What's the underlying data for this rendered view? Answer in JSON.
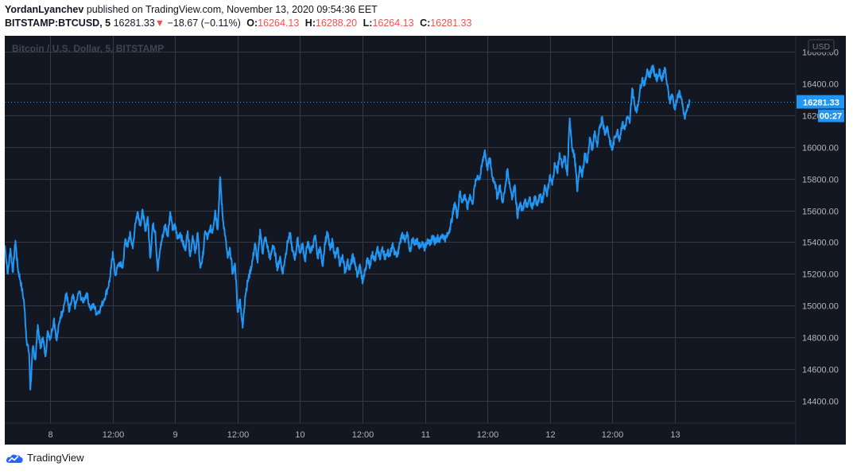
{
  "header": {
    "author": "YordanLyanchev",
    "published_text": " published on TradingView.com, November 13, 2020 09:54:36 EET",
    "symbol": "BITSTAMP:BTCUSD, 5",
    "last": "16281.33",
    "change": "−18.67 (−0.11%)",
    "o_label": "O:",
    "o_value": "16264.13",
    "h_label": "H:",
    "h_value": "16288.20",
    "l_label": "L:",
    "l_value": "16264.13",
    "c_label": "C:",
    "c_value": "16281.33",
    "down_arrow": "▼"
  },
  "footer": {
    "brand": "TradingView",
    "logo_icon": "tradingview-cloud-icon"
  },
  "colors": {
    "background": "#131722",
    "grid": "#363a45",
    "line": "#2196f3",
    "axis_text": "#b2b5be",
    "down": "#ef5350"
  },
  "chart_data": {
    "type": "line",
    "title": "Bitcoin / U.S. Dollar, 5, BITSTAMP",
    "currency": "USD",
    "x_ticks": [
      "8",
      "12:00",
      "9",
      "12:00",
      "10",
      "12:00",
      "11",
      "12:00",
      "12",
      "12:00",
      "13"
    ],
    "y_ticks": [
      14400,
      14600,
      14800,
      15000,
      15200,
      15400,
      15600,
      15800,
      16000,
      16200,
      16400,
      16600
    ],
    "y_tick_labels": [
      "14400.00",
      "14600.00",
      "14800.00",
      "15000.00",
      "15200.00",
      "15400.00",
      "15600.00",
      "15800.00",
      "16000.00",
      "16200.00",
      "16400.00",
      "16600.00"
    ],
    "ylim": [
      14260,
      16700
    ],
    "x_unit": "days since Nov 7 2020 00:00 (EET)",
    "xlim": [
      0.635,
      6.97
    ],
    "last_price": 16281.33,
    "last_price_label": "16281.33",
    "countdown": "00:27",
    "series": [
      {
        "name": "BTCUSD",
        "points": [
          [
            0.635,
            15380
          ],
          [
            0.66,
            15200
          ],
          [
            0.68,
            15360
          ],
          [
            0.7,
            15210
          ],
          [
            0.72,
            15410
          ],
          [
            0.74,
            15230
          ],
          [
            0.76,
            15160
          ],
          [
            0.79,
            15020
          ],
          [
            0.81,
            14780
          ],
          [
            0.83,
            14700
          ],
          [
            0.84,
            14470
          ],
          [
            0.86,
            14740
          ],
          [
            0.88,
            14660
          ],
          [
            0.9,
            14880
          ],
          [
            0.92,
            14730
          ],
          [
            0.94,
            14800
          ],
          [
            0.96,
            14680
          ],
          [
            0.98,
            14840
          ],
          [
            1.0,
            14790
          ],
          [
            1.03,
            14920
          ],
          [
            1.05,
            14780
          ],
          [
            1.08,
            14930
          ],
          [
            1.1,
            14970
          ],
          [
            1.13,
            15080
          ],
          [
            1.15,
            14960
          ],
          [
            1.18,
            15060
          ],
          [
            1.2,
            14990
          ],
          [
            1.23,
            15090
          ],
          [
            1.26,
            15020
          ],
          [
            1.29,
            15080
          ],
          [
            1.32,
            14980
          ],
          [
            1.35,
            15000
          ],
          [
            1.37,
            14950
          ],
          [
            1.4,
            14980
          ],
          [
            1.43,
            15040
          ],
          [
            1.46,
            15110
          ],
          [
            1.48,
            15180
          ],
          [
            1.5,
            15340
          ],
          [
            1.52,
            15190
          ],
          [
            1.55,
            15270
          ],
          [
            1.58,
            15240
          ],
          [
            1.6,
            15420
          ],
          [
            1.62,
            15370
          ],
          [
            1.64,
            15460
          ],
          [
            1.66,
            15360
          ],
          [
            1.68,
            15520
          ],
          [
            1.7,
            15590
          ],
          [
            1.72,
            15510
          ],
          [
            1.74,
            15600
          ],
          [
            1.76,
            15470
          ],
          [
            1.78,
            15560
          ],
          [
            1.8,
            15300
          ],
          [
            1.82,
            15510
          ],
          [
            1.84,
            15470
          ],
          [
            1.86,
            15220
          ],
          [
            1.88,
            15360
          ],
          [
            1.9,
            15440
          ],
          [
            1.92,
            15510
          ],
          [
            1.94,
            15440
          ],
          [
            1.96,
            15590
          ],
          [
            1.98,
            15480
          ],
          [
            2.0,
            15500
          ],
          [
            2.02,
            15420
          ],
          [
            2.04,
            15460
          ],
          [
            2.06,
            15400
          ],
          [
            2.08,
            15350
          ],
          [
            2.1,
            15470
          ],
          [
            2.12,
            15310
          ],
          [
            2.14,
            15440
          ],
          [
            2.16,
            15330
          ],
          [
            2.18,
            15460
          ],
          [
            2.2,
            15240
          ],
          [
            2.22,
            15300
          ],
          [
            2.24,
            15470
          ],
          [
            2.26,
            15420
          ],
          [
            2.28,
            15490
          ],
          [
            2.3,
            15470
          ],
          [
            2.32,
            15600
          ],
          [
            2.34,
            15480
          ],
          [
            2.36,
            15810
          ],
          [
            2.38,
            15560
          ],
          [
            2.4,
            15440
          ],
          [
            2.42,
            15300
          ],
          [
            2.44,
            15350
          ],
          [
            2.46,
            15200
          ],
          [
            2.48,
            15260
          ],
          [
            2.5,
            14960
          ],
          [
            2.52,
            15040
          ],
          [
            2.54,
            14860
          ],
          [
            2.56,
            15060
          ],
          [
            2.58,
            15150
          ],
          [
            2.6,
            15210
          ],
          [
            2.62,
            15290
          ],
          [
            2.64,
            15390
          ],
          [
            2.66,
            15270
          ],
          [
            2.68,
            15480
          ],
          [
            2.7,
            15330
          ],
          [
            2.72,
            15430
          ],
          [
            2.74,
            15370
          ],
          [
            2.76,
            15290
          ],
          [
            2.78,
            15380
          ],
          [
            2.8,
            15330
          ],
          [
            2.82,
            15230
          ],
          [
            2.84,
            15310
          ],
          [
            2.86,
            15200
          ],
          [
            2.88,
            15300
          ],
          [
            2.9,
            15400
          ],
          [
            2.92,
            15450
          ],
          [
            2.94,
            15340
          ],
          [
            2.96,
            15300
          ],
          [
            2.98,
            15420
          ],
          [
            3.0,
            15330
          ],
          [
            3.02,
            15390
          ],
          [
            3.04,
            15280
          ],
          [
            3.06,
            15400
          ],
          [
            3.08,
            15340
          ],
          [
            3.1,
            15370
          ],
          [
            3.12,
            15440
          ],
          [
            3.14,
            15300
          ],
          [
            3.16,
            15370
          ],
          [
            3.18,
            15250
          ],
          [
            3.2,
            15400
          ],
          [
            3.22,
            15460
          ],
          [
            3.24,
            15350
          ],
          [
            3.26,
            15410
          ],
          [
            3.28,
            15300
          ],
          [
            3.3,
            15360
          ],
          [
            3.32,
            15250
          ],
          [
            3.34,
            15320
          ],
          [
            3.36,
            15210
          ],
          [
            3.38,
            15280
          ],
          [
            3.4,
            15230
          ],
          [
            3.42,
            15310
          ],
          [
            3.44,
            15270
          ],
          [
            3.46,
            15180
          ],
          [
            3.48,
            15260
          ],
          [
            3.5,
            15140
          ],
          [
            3.52,
            15220
          ],
          [
            3.54,
            15300
          ],
          [
            3.56,
            15250
          ],
          [
            3.58,
            15340
          ],
          [
            3.6,
            15280
          ],
          [
            3.62,
            15360
          ],
          [
            3.64,
            15290
          ],
          [
            3.66,
            15370
          ],
          [
            3.68,
            15300
          ],
          [
            3.7,
            15340
          ],
          [
            3.72,
            15320
          ],
          [
            3.74,
            15380
          ],
          [
            3.76,
            15330
          ],
          [
            3.78,
            15310
          ],
          [
            3.8,
            15400
          ],
          [
            3.82,
            15460
          ],
          [
            3.84,
            15400
          ],
          [
            3.86,
            15450
          ],
          [
            3.88,
            15340
          ],
          [
            3.9,
            15420
          ],
          [
            3.92,
            15390
          ],
          [
            3.94,
            15410
          ],
          [
            3.96,
            15370
          ],
          [
            3.98,
            15400
          ],
          [
            4.0,
            15360
          ],
          [
            4.02,
            15420
          ],
          [
            4.04,
            15380
          ],
          [
            4.06,
            15440
          ],
          [
            4.08,
            15400
          ],
          [
            4.1,
            15430
          ],
          [
            4.12,
            15410
          ],
          [
            4.14,
            15450
          ],
          [
            4.16,
            15420
          ],
          [
            4.18,
            15440
          ],
          [
            4.2,
            15490
          ],
          [
            4.22,
            15560
          ],
          [
            4.24,
            15650
          ],
          [
            4.26,
            15560
          ],
          [
            4.28,
            15720
          ],
          [
            4.3,
            15650
          ],
          [
            4.32,
            15700
          ],
          [
            4.34,
            15610
          ],
          [
            4.36,
            15700
          ],
          [
            4.38,
            15640
          ],
          [
            4.4,
            15760
          ],
          [
            4.42,
            15820
          ],
          [
            4.44,
            15800
          ],
          [
            4.46,
            15900
          ],
          [
            4.48,
            15980
          ],
          [
            4.5,
            15860
          ],
          [
            4.52,
            15930
          ],
          [
            4.54,
            15810
          ],
          [
            4.56,
            15780
          ],
          [
            4.58,
            15680
          ],
          [
            4.6,
            15760
          ],
          [
            4.62,
            15650
          ],
          [
            4.64,
            15720
          ],
          [
            4.66,
            15860
          ],
          [
            4.68,
            15760
          ],
          [
            4.7,
            15680
          ],
          [
            4.72,
            15760
          ],
          [
            4.74,
            15560
          ],
          [
            4.76,
            15640
          ],
          [
            4.78,
            15600
          ],
          [
            4.8,
            15660
          ],
          [
            4.82,
            15620
          ],
          [
            4.84,
            15680
          ],
          [
            4.86,
            15610
          ],
          [
            4.88,
            15690
          ],
          [
            4.9,
            15630
          ],
          [
            4.92,
            15700
          ],
          [
            4.94,
            15650
          ],
          [
            4.96,
            15760
          ],
          [
            4.98,
            15700
          ],
          [
            5.0,
            15820
          ],
          [
            5.02,
            15760
          ],
          [
            5.04,
            15900
          ],
          [
            5.06,
            15840
          ],
          [
            5.08,
            15960
          ],
          [
            5.1,
            15870
          ],
          [
            5.12,
            15940
          ],
          [
            5.14,
            15820
          ],
          [
            5.16,
            16180
          ],
          [
            5.18,
            15990
          ],
          [
            5.2,
            15930
          ],
          [
            5.22,
            15720
          ],
          [
            5.24,
            15880
          ],
          [
            5.26,
            15810
          ],
          [
            5.28,
            15960
          ],
          [
            5.3,
            15900
          ],
          [
            5.32,
            16060
          ],
          [
            5.34,
            15980
          ],
          [
            5.36,
            16100
          ],
          [
            5.38,
            16000
          ],
          [
            5.4,
            16120
          ],
          [
            5.42,
            16190
          ],
          [
            5.44,
            16080
          ],
          [
            5.46,
            16130
          ],
          [
            5.48,
            16040
          ],
          [
            5.5,
            15980
          ],
          [
            5.52,
            16060
          ],
          [
            5.54,
            16100
          ],
          [
            5.56,
            16050
          ],
          [
            5.58,
            16150
          ],
          [
            5.6,
            16110
          ],
          [
            5.62,
            16190
          ],
          [
            5.64,
            16150
          ],
          [
            5.66,
            16370
          ],
          [
            5.68,
            16260
          ],
          [
            5.7,
            16230
          ],
          [
            5.72,
            16350
          ],
          [
            5.74,
            16430
          ],
          [
            5.76,
            16390
          ],
          [
            5.78,
            16490
          ],
          [
            5.8,
            16440
          ],
          [
            5.82,
            16510
          ],
          [
            5.84,
            16460
          ],
          [
            5.86,
            16430
          ],
          [
            5.88,
            16480
          ],
          [
            5.9,
            16420
          ],
          [
            5.92,
            16500
          ],
          [
            5.94,
            16390
          ],
          [
            5.96,
            16290
          ],
          [
            5.98,
            16330
          ],
          [
            6.0,
            16240
          ],
          [
            6.02,
            16300
          ],
          [
            6.04,
            16350
          ],
          [
            6.06,
            16270
          ],
          [
            6.08,
            16180
          ],
          [
            6.1,
            16240
          ],
          [
            6.12,
            16281
          ]
        ]
      }
    ]
  }
}
